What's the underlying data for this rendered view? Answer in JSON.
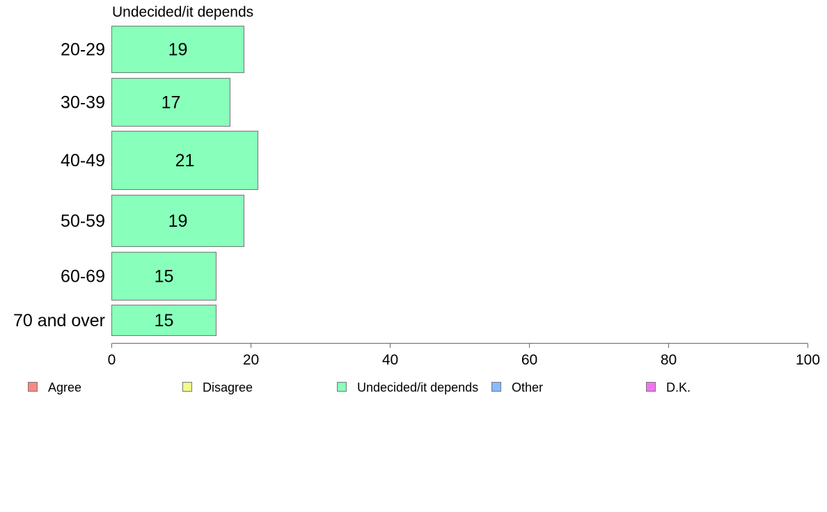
{
  "chart_data": {
    "type": "bar",
    "orientation": "horizontal",
    "title": "Undecided/it depends",
    "categories": [
      "20-29",
      "30-39",
      "40-49",
      "50-59",
      "60-69",
      "70 and over"
    ],
    "series": [
      {
        "name": "Undecided/it depends",
        "color": "#88FFBB",
        "values": [
          19,
          17,
          21,
          19,
          15,
          15
        ]
      }
    ],
    "xlim": [
      0,
      100
    ],
    "xticks": [
      "0",
      "20",
      "40",
      "60",
      "80",
      "100"
    ],
    "grid": false,
    "legend": {
      "placement": "bottom",
      "items": [
        {
          "label": "Agree",
          "color": "#F88A82"
        },
        {
          "label": "Disagree",
          "color": "#EEFF88"
        },
        {
          "label": "Undecided/it depends",
          "color": "#88FFBB"
        },
        {
          "label": "Other",
          "color": "#88BBFF"
        },
        {
          "label": "D.K.",
          "color": "#EE77EE"
        }
      ]
    }
  }
}
